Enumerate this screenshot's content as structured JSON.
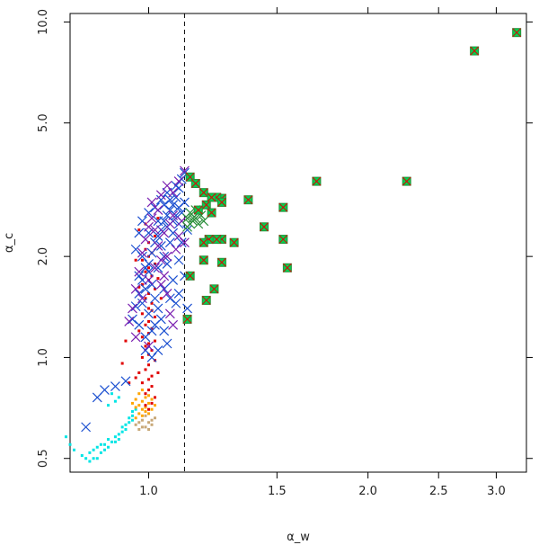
{
  "chart_data": {
    "type": "scatter",
    "xlabel": "α_w",
    "ylabel": "α_c",
    "x_scale": "log",
    "y_scale": "log",
    "xlim": [
      0.78,
      3.3
    ],
    "ylim": [
      0.455,
      10.6
    ],
    "x_ticks": [
      1.0,
      1.5,
      2.0,
      2.5,
      3.0
    ],
    "x_tick_labels": [
      "1.0",
      "1.5",
      "2.0",
      "2.5",
      "3.0"
    ],
    "y_ticks": [
      0.5,
      1.0,
      2.0,
      5.0,
      10.0
    ],
    "y_tick_labels": [
      "0.5",
      "1.0",
      "2.0",
      "5.0",
      "10.0"
    ],
    "reference_line": {
      "orientation": "vertical",
      "x": 1.12,
      "style": "dashed",
      "color": "#000000"
    },
    "grid": false,
    "legend": "none",
    "series": [
      {
        "marker": "square-dot",
        "color": "#00e5e5",
        "points": [
          [
            0.77,
            0.58
          ],
          [
            0.78,
            0.55
          ],
          [
            0.79,
            0.53
          ],
          [
            0.81,
            0.51
          ],
          [
            0.82,
            0.5
          ],
          [
            0.83,
            0.49
          ],
          [
            0.84,
            0.5
          ],
          [
            0.85,
            0.5
          ],
          [
            0.86,
            0.52
          ],
          [
            0.87,
            0.53
          ],
          [
            0.87,
            0.55
          ],
          [
            0.88,
            0.54
          ],
          [
            0.89,
            0.56
          ],
          [
            0.9,
            0.56
          ],
          [
            0.9,
            0.58
          ],
          [
            0.91,
            0.57
          ],
          [
            0.91,
            0.59
          ],
          [
            0.92,
            0.6
          ],
          [
            0.92,
            0.62
          ],
          [
            0.93,
            0.61
          ],
          [
            0.93,
            0.63
          ],
          [
            0.94,
            0.64
          ],
          [
            0.94,
            0.66
          ],
          [
            0.95,
            0.65
          ],
          [
            0.95,
            0.67
          ],
          [
            0.95,
            0.69
          ],
          [
            0.96,
            0.7
          ],
          [
            0.88,
            0.72
          ],
          [
            0.9,
            0.74
          ],
          [
            0.91,
            0.76
          ],
          [
            0.89,
            0.78
          ],
          [
            0.86,
            0.55
          ],
          [
            0.85,
            0.54
          ],
          [
            0.84,
            0.53
          ],
          [
            0.83,
            0.52
          ],
          [
            0.88,
            0.57
          ]
        ]
      },
      {
        "marker": "square-dot",
        "color": "#c8a878",
        "points": [
          [
            0.96,
            0.63
          ],
          [
            0.97,
            0.64
          ],
          [
            0.98,
            0.65
          ],
          [
            0.99,
            0.62
          ],
          [
            1.0,
            0.64
          ],
          [
            1.01,
            0.63
          ],
          [
            1.02,
            0.66
          ],
          [
            0.97,
            0.61
          ],
          [
            0.99,
            0.67
          ],
          [
            1.0,
            0.61
          ],
          [
            0.98,
            0.62
          ],
          [
            1.01,
            0.65
          ]
        ]
      },
      {
        "marker": "square-dot",
        "color": "#ffa500",
        "points": [
          [
            0.96,
            0.66
          ],
          [
            0.97,
            0.68
          ],
          [
            0.98,
            0.7
          ],
          [
            0.99,
            0.69
          ],
          [
            1.0,
            0.68
          ],
          [
            1.01,
            0.7
          ],
          [
            0.97,
            0.72
          ],
          [
            0.98,
            0.74
          ],
          [
            0.99,
            0.76
          ],
          [
            1.0,
            0.73
          ],
          [
            0.96,
            0.71
          ],
          [
            0.97,
            0.78
          ],
          [
            0.98,
            0.8
          ],
          [
            1.02,
            0.72
          ],
          [
            1.01,
            0.75
          ],
          [
            0.95,
            0.73
          ],
          [
            0.96,
            0.75
          ],
          [
            0.99,
            0.71
          ],
          [
            1.0,
            0.77
          ],
          [
            0.98,
            0.67
          ]
        ]
      },
      {
        "marker": "square-dot",
        "color": "#e00000",
        "points": [
          [
            0.99,
            0.72
          ],
          [
            1.0,
            0.7
          ],
          [
            1.01,
            0.73
          ],
          [
            1.02,
            0.76
          ],
          [
            0.99,
            0.78
          ],
          [
            1.0,
            0.8
          ],
          [
            1.01,
            0.82
          ],
          [
            0.98,
            0.84
          ],
          [
            1.0,
            0.86
          ],
          [
            1.01,
            0.88
          ],
          [
            0.97,
            0.9
          ],
          [
            0.99,
            0.92
          ],
          [
            1.0,
            0.95
          ],
          [
            1.02,
            0.98
          ],
          [
            0.98,
            1.0
          ],
          [
            1.0,
            1.02
          ],
          [
            1.01,
            1.05
          ],
          [
            0.99,
            1.08
          ],
          [
            1.0,
            1.1
          ],
          [
            1.02,
            1.12
          ],
          [
            0.98,
            1.15
          ],
          [
            1.0,
            1.18
          ],
          [
            1.01,
            1.22
          ],
          [
            0.99,
            1.25
          ],
          [
            1.0,
            1.28
          ],
          [
            1.02,
            1.32
          ],
          [
            0.98,
            1.35
          ],
          [
            1.0,
            1.4
          ],
          [
            1.01,
            1.45
          ],
          [
            0.99,
            1.5
          ],
          [
            1.0,
            1.55
          ],
          [
            1.02,
            1.6
          ],
          [
            0.98,
            1.65
          ],
          [
            1.0,
            1.7
          ],
          [
            1.01,
            1.75
          ],
          [
            0.99,
            1.8
          ],
          [
            1.0,
            1.85
          ],
          [
            1.02,
            1.9
          ],
          [
            0.98,
            1.95
          ],
          [
            1.0,
            2.0
          ],
          [
            1.01,
            2.05
          ],
          [
            0.99,
            2.1
          ],
          [
            1.0,
            2.2
          ],
          [
            1.02,
            2.3
          ],
          [
            0.97,
            2.4
          ],
          [
            0.99,
            2.5
          ],
          [
            1.03,
            2.6
          ],
          [
            1.01,
            1.38
          ],
          [
            0.97,
            1.62
          ],
          [
            1.03,
            1.72
          ],
          [
            0.96,
            0.87
          ],
          [
            0.94,
            0.84
          ],
          [
            1.03,
            0.9
          ],
          [
            0.92,
            0.96
          ],
          [
            0.97,
            1.2
          ],
          [
            0.93,
            1.12
          ],
          [
            1.04,
            1.5
          ],
          [
            0.96,
            1.95
          ]
        ]
      },
      {
        "marker": "x",
        "color": "#1a4fd0",
        "points": [
          [
            0.82,
            0.62
          ],
          [
            0.85,
            0.76
          ],
          [
            0.87,
            0.8
          ],
          [
            0.9,
            0.82
          ],
          [
            0.93,
            0.85
          ],
          [
            0.95,
            1.3
          ],
          [
            0.96,
            1.42
          ],
          [
            0.97,
            1.55
          ],
          [
            0.98,
            1.7
          ],
          [
            0.99,
            1.85
          ],
          [
            1.0,
            1.9
          ],
          [
            1.01,
            2.05
          ],
          [
            1.02,
            2.2
          ],
          [
            1.03,
            2.3
          ],
          [
            1.04,
            2.4
          ],
          [
            1.05,
            2.55
          ],
          [
            1.06,
            2.65
          ],
          [
            1.07,
            2.75
          ],
          [
            1.08,
            2.85
          ],
          [
            1.09,
            3.0
          ],
          [
            1.1,
            3.2
          ],
          [
            1.11,
            3.4
          ],
          [
            1.12,
            3.55
          ],
          [
            1.09,
            3.25
          ],
          [
            1.06,
            3.1
          ],
          [
            1.04,
            2.95
          ],
          [
            1.02,
            2.8
          ],
          [
            1.0,
            2.7
          ],
          [
            0.98,
            2.55
          ],
          [
            0.97,
            2.35
          ],
          [
            0.96,
            2.1
          ],
          [
            0.98,
            2.0
          ],
          [
            1.0,
            1.8
          ],
          [
            1.01,
            1.65
          ],
          [
            1.02,
            1.5
          ],
          [
            1.03,
            1.4
          ],
          [
            1.04,
            1.3
          ],
          [
            1.05,
            1.2
          ],
          [
            1.06,
            1.1
          ],
          [
            1.03,
            1.05
          ],
          [
            1.01,
            1.0
          ],
          [
            0.99,
            1.15
          ],
          [
            0.97,
            1.25
          ],
          [
            1.05,
            2.0
          ],
          [
            1.07,
            2.2
          ],
          [
            1.08,
            2.35
          ],
          [
            1.1,
            2.5
          ],
          [
            1.11,
            2.7
          ],
          [
            1.12,
            2.9
          ],
          [
            1.13,
            1.4
          ],
          [
            1.1,
            1.55
          ],
          [
            1.08,
            1.7
          ],
          [
            1.06,
            1.9
          ],
          [
            1.09,
            1.45
          ],
          [
            1.11,
            2.2
          ],
          [
            1.0,
            2.35
          ],
          [
            0.99,
            1.6
          ],
          [
            1.03,
            1.85
          ],
          [
            1.05,
            1.6
          ],
          [
            1.07,
            1.5
          ],
          [
            1.12,
            1.75
          ],
          [
            1.1,
            1.95
          ],
          [
            1.02,
            1.25
          ],
          [
            1.0,
            1.35
          ],
          [
            0.98,
            1.45
          ],
          [
            0.97,
            1.75
          ],
          [
            1.04,
            2.15
          ],
          [
            1.06,
            2.45
          ],
          [
            1.08,
            2.55
          ],
          [
            1.1,
            2.8
          ],
          [
            1.13,
            2.4
          ],
          [
            0.99,
            1.05
          ],
          [
            1.01,
            1.2
          ],
          [
            1.03,
            2.55
          ],
          [
            1.05,
            2.85
          ],
          [
            1.07,
            2.95
          ],
          [
            1.09,
            2.65
          ]
        ]
      },
      {
        "marker": "x",
        "color": "#7a1fb0",
        "points": [
          [
            0.94,
            1.28
          ],
          [
            0.95,
            1.4
          ],
          [
            0.96,
            1.6
          ],
          [
            0.97,
            1.8
          ],
          [
            0.98,
            2.05
          ],
          [
            0.99,
            2.25
          ],
          [
            1.0,
            2.45
          ],
          [
            1.01,
            2.6
          ],
          [
            1.02,
            2.4
          ],
          [
            1.03,
            2.15
          ],
          [
            1.04,
            1.95
          ],
          [
            1.05,
            1.75
          ],
          [
            1.06,
            1.55
          ],
          [
            1.07,
            1.35
          ],
          [
            1.08,
            1.25
          ],
          [
            1.09,
            2.1
          ],
          [
            1.1,
            2.3
          ],
          [
            1.11,
            2.55
          ],
          [
            1.08,
            3.1
          ],
          [
            1.06,
            3.25
          ],
          [
            1.04,
            3.05
          ],
          [
            1.12,
            3.6
          ],
          [
            1.1,
            3.35
          ],
          [
            1.0,
            1.7
          ],
          [
            1.02,
            1.85
          ],
          [
            1.04,
            1.65
          ],
          [
            0.98,
            1.5
          ],
          [
            1.06,
            2.0
          ],
          [
            1.08,
            2.65
          ],
          [
            1.12,
            2.2
          ],
          [
            1.05,
            2.35
          ],
          [
            1.03,
            2.75
          ],
          [
            1.01,
            2.9
          ],
          [
            1.07,
            2.5
          ],
          [
            0.96,
            1.15
          ],
          [
            1.0,
            1.08
          ]
        ]
      },
      {
        "marker": "x",
        "color": "#2a8f3a",
        "points": [
          [
            1.13,
            2.45
          ],
          [
            1.14,
            2.5
          ],
          [
            1.15,
            2.55
          ],
          [
            1.16,
            2.6
          ],
          [
            1.17,
            2.5
          ],
          [
            1.18,
            2.65
          ],
          [
            1.14,
            2.7
          ],
          [
            1.16,
            2.75
          ],
          [
            1.19,
            2.55
          ],
          [
            1.15,
            2.6
          ],
          [
            1.17,
            2.7
          ],
          [
            1.13,
            2.6
          ]
        ]
      },
      {
        "marker": "square-x",
        "color": "#2a8f3a",
        "marker_fill": "#00d050",
        "cross_color": "#e00000",
        "points": [
          [
            3.2,
            9.3
          ],
          [
            2.8,
            8.2
          ],
          [
            2.26,
            3.35
          ],
          [
            1.7,
            3.35
          ],
          [
            1.37,
            2.95
          ],
          [
            1.53,
            2.8
          ],
          [
            1.26,
            2.98
          ],
          [
            1.24,
            3.0
          ],
          [
            1.2,
            2.85
          ],
          [
            1.14,
            3.45
          ],
          [
            1.16,
            3.3
          ],
          [
            1.19,
            3.1
          ],
          [
            1.22,
            3.0
          ],
          [
            1.17,
            2.75
          ],
          [
            1.22,
            2.7
          ],
          [
            1.26,
            2.9
          ],
          [
            1.44,
            2.45
          ],
          [
            1.53,
            2.25
          ],
          [
            1.31,
            2.2
          ],
          [
            1.26,
            2.25
          ],
          [
            1.24,
            2.25
          ],
          [
            1.21,
            2.25
          ],
          [
            1.19,
            2.2
          ],
          [
            1.19,
            1.95
          ],
          [
            1.26,
            1.92
          ],
          [
            1.55,
            1.85
          ],
          [
            1.14,
            1.75
          ],
          [
            1.23,
            1.6
          ],
          [
            1.2,
            1.48
          ],
          [
            1.13,
            1.3
          ]
        ]
      }
    ]
  }
}
